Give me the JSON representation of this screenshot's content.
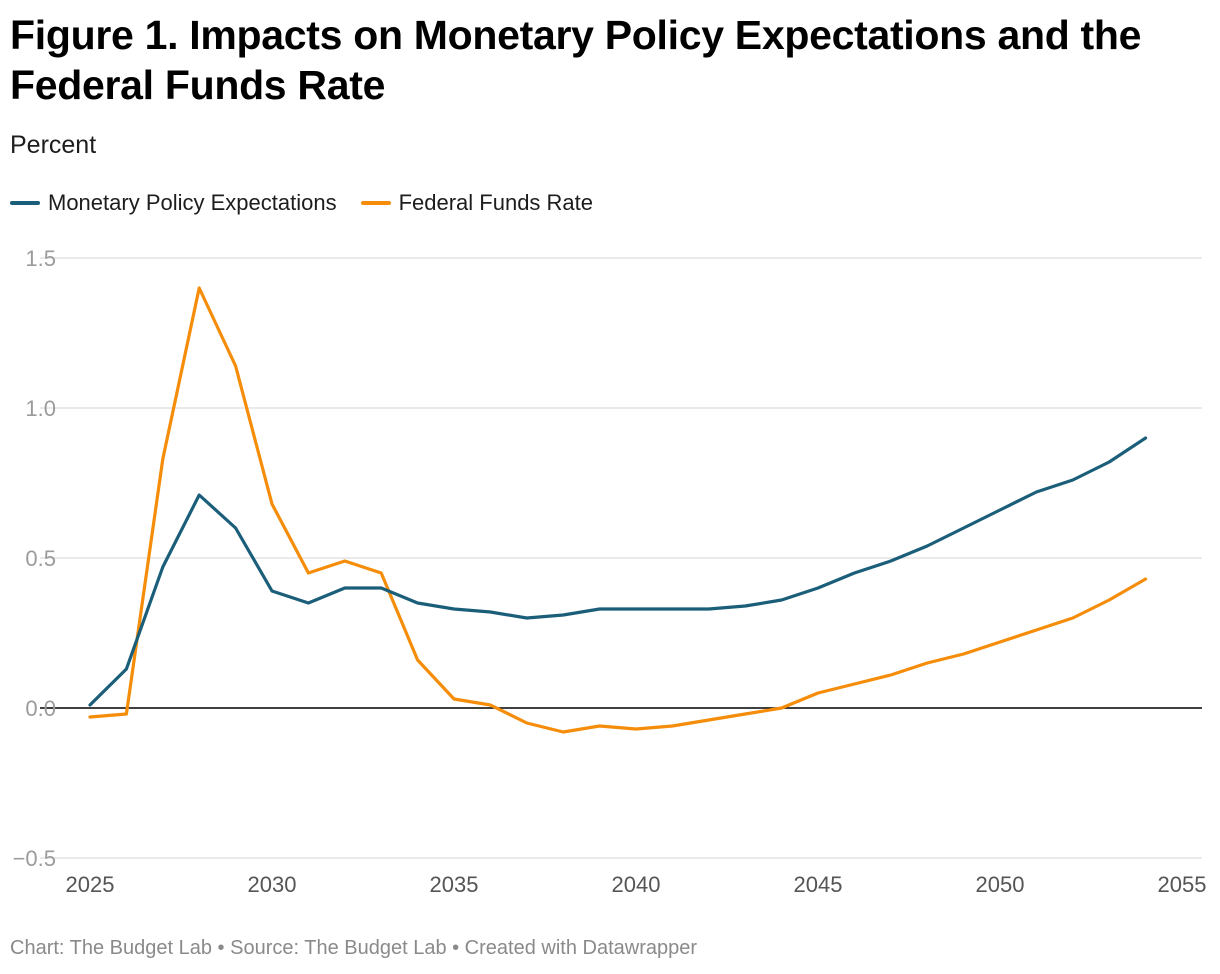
{
  "header": {
    "title": "Figure 1. Impacts on Monetary Policy Expectations and the Federal Funds Rate",
    "subtitle": "Percent"
  },
  "footer": {
    "text": "Chart: The Budget Lab • Source: The Budget Lab • Created with Datawrapper"
  },
  "colors": {
    "mpe": "#1b5e7a",
    "ffr": "#f58d0a",
    "grid": "#e3e3e3",
    "zero_line": "#000000"
  },
  "chart_data": {
    "type": "line",
    "title": "Figure 1. Impacts on Monetary Policy Expectations and the Federal Funds Rate",
    "ylabel": "Percent",
    "xlabel": "",
    "xlim": [
      2025,
      2055
    ],
    "ylim": [
      -0.5,
      1.5
    ],
    "yticks": [
      -0.5,
      0.0,
      0.5,
      1.0,
      1.5
    ],
    "ytick_labels": [
      "−0.5",
      "0.0",
      "0.5",
      "1.0",
      "1.5"
    ],
    "xticks": [
      2025,
      2030,
      2035,
      2040,
      2045,
      2050,
      2055
    ],
    "xtick_labels": [
      "2025",
      "2030",
      "2035",
      "2040",
      "2045",
      "2050",
      "2055"
    ],
    "grid": true,
    "legend": "top-left",
    "x": [
      2025,
      2026,
      2027,
      2028,
      2029,
      2030,
      2031,
      2032,
      2033,
      2034,
      2035,
      2036,
      2037,
      2038,
      2039,
      2040,
      2041,
      2042,
      2043,
      2044,
      2045,
      2046,
      2047,
      2048,
      2049,
      2050,
      2051,
      2052,
      2053,
      2054
    ],
    "series": [
      {
        "name": "Monetary Policy Expectations",
        "values": [
          0.01,
          0.13,
          0.47,
          0.71,
          0.6,
          0.39,
          0.35,
          0.4,
          0.4,
          0.35,
          0.33,
          0.32,
          0.3,
          0.31,
          0.33,
          0.33,
          0.33,
          0.33,
          0.34,
          0.36,
          0.4,
          0.45,
          0.49,
          0.54,
          0.6,
          0.66,
          0.72,
          0.76,
          0.82,
          0.9
        ]
      },
      {
        "name": "Federal Funds Rate",
        "values": [
          -0.03,
          -0.02,
          0.83,
          1.4,
          1.14,
          0.68,
          0.45,
          0.49,
          0.45,
          0.16,
          0.03,
          0.01,
          -0.05,
          -0.08,
          -0.06,
          -0.07,
          -0.06,
          -0.04,
          -0.02,
          0.0,
          0.05,
          0.08,
          0.11,
          0.15,
          0.18,
          0.22,
          0.26,
          0.3,
          0.36,
          0.43
        ]
      }
    ]
  }
}
